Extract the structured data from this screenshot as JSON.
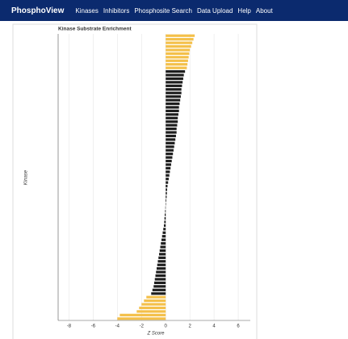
{
  "nav": {
    "brand": "PhosphoView",
    "links": [
      "Kinases",
      "Inhibitors",
      "Phosphosite Search",
      "Data Upload",
      "Help",
      "About"
    ]
  },
  "chart_data": {
    "type": "hbar",
    "title": "Kinase Substrate Enrichment",
    "x_label": "Z Score",
    "y_label": "Kinase",
    "categories": [
      null,
      null,
      null,
      null,
      null,
      null,
      null,
      null,
      null,
      null,
      null,
      null,
      null,
      null,
      null,
      null,
      null,
      null,
      null,
      null,
      null,
      null,
      null,
      null,
      null,
      null,
      null,
      null,
      null,
      null,
      null,
      null,
      null,
      null,
      null,
      null,
      null,
      null,
      null,
      null,
      null,
      null,
      null,
      null,
      null,
      null,
      null,
      null,
      null,
      null,
      null,
      null,
      null,
      null,
      null,
      null,
      null,
      null,
      null,
      null,
      null,
      null,
      null,
      null,
      null,
      null,
      null,
      null,
      null,
      null,
      null,
      null,
      null,
      null,
      null,
      null,
      null,
      null,
      null,
      null
    ],
    "values": [
      2.4,
      2.3,
      2.2,
      2.1,
      2.0,
      1.95,
      1.9,
      1.85,
      1.8,
      1.75,
      1.6,
      1.5,
      1.45,
      1.4,
      1.35,
      1.3,
      1.3,
      1.25,
      1.2,
      1.15,
      1.1,
      1.1,
      1.05,
      1.0,
      1.0,
      0.95,
      0.9,
      0.9,
      0.85,
      0.8,
      0.75,
      0.7,
      0.65,
      0.6,
      0.55,
      0.5,
      0.45,
      0.4,
      0.35,
      0.3,
      0.25,
      0.2,
      0.15,
      0.12,
      0.1,
      0.08,
      0.05,
      0.03,
      -0.03,
      -0.05,
      -0.08,
      -0.1,
      -0.12,
      -0.15,
      -0.2,
      -0.25,
      -0.3,
      -0.35,
      -0.4,
      -0.45,
      -0.5,
      -0.55,
      -0.6,
      -0.65,
      -0.7,
      -0.75,
      -0.8,
      -0.85,
      -0.9,
      -0.95,
      -1.0,
      -1.1,
      -1.2,
      -1.6,
      -1.8,
      -2.0,
      -2.2,
      -2.4,
      -3.8,
      -4.0
    ],
    "colors": [
      "#f4c04a",
      "#f4c04a",
      "#f4c04a",
      "#f4c04a",
      "#f4c04a",
      "#f4c04a",
      "#f4c04a",
      "#f4c04a",
      "#f4c04a",
      "#f4c04a",
      "#1e1e1e",
      "#1e1e1e",
      "#1e1e1e",
      "#1e1e1e",
      "#1e1e1e",
      "#1e1e1e",
      "#1e1e1e",
      "#1e1e1e",
      "#1e1e1e",
      "#1e1e1e",
      "#1e1e1e",
      "#1e1e1e",
      "#1e1e1e",
      "#1e1e1e",
      "#1e1e1e",
      "#1e1e1e",
      "#1e1e1e",
      "#1e1e1e",
      "#1e1e1e",
      "#1e1e1e",
      "#1e1e1e",
      "#1e1e1e",
      "#1e1e1e",
      "#1e1e1e",
      "#1e1e1e",
      "#1e1e1e",
      "#1e1e1e",
      "#1e1e1e",
      "#1e1e1e",
      "#1e1e1e",
      "#1e1e1e",
      "#1e1e1e",
      "#1e1e1e",
      "#1e1e1e",
      "#1e1e1e",
      "#1e1e1e",
      "#1e1e1e",
      "#1e1e1e",
      "#1e1e1e",
      "#1e1e1e",
      "#1e1e1e",
      "#1e1e1e",
      "#1e1e1e",
      "#1e1e1e",
      "#1e1e1e",
      "#1e1e1e",
      "#1e1e1e",
      "#1e1e1e",
      "#1e1e1e",
      "#1e1e1e",
      "#1e1e1e",
      "#1e1e1e",
      "#1e1e1e",
      "#1e1e1e",
      "#1e1e1e",
      "#1e1e1e",
      "#1e1e1e",
      "#1e1e1e",
      "#1e1e1e",
      "#1e1e1e",
      "#1e1e1e",
      "#1e1e1e",
      "#1e1e1e",
      "#f4c04a",
      "#f4c04a",
      "#f4c04a",
      "#f4c04a",
      "#f4c04a",
      "#f4c04a",
      "#f4c04a"
    ],
    "xlim": [
      -8.9,
      7
    ],
    "xticks": [
      -8,
      -6,
      -4,
      -2,
      0,
      2,
      4,
      6
    ],
    "grid": true
  }
}
